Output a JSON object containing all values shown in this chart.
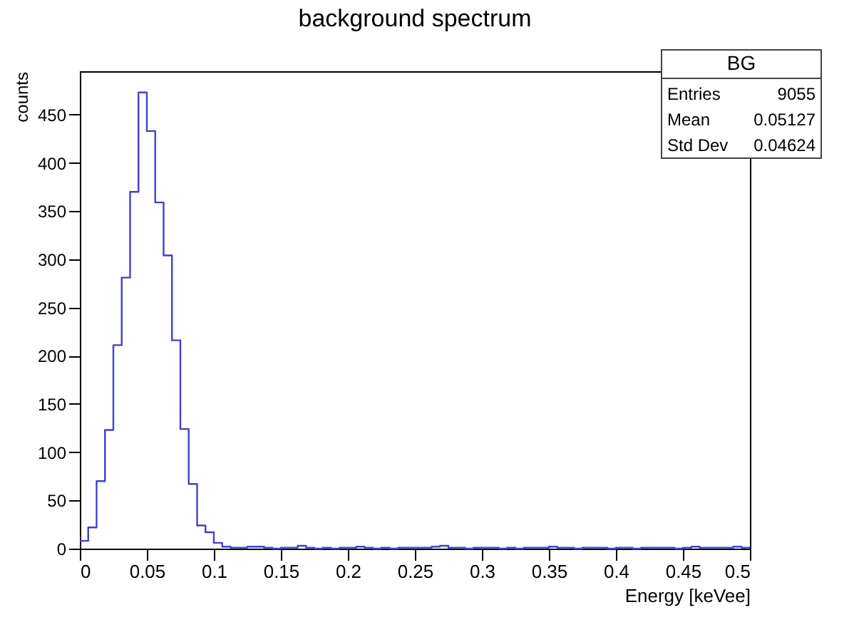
{
  "chart_data": {
    "type": "histogram",
    "title": "background spectrum",
    "xlabel": "Energy [keVee]",
    "ylabel": "counts",
    "bins": [
      0,
      0.00625,
      0.0125,
      0.01875,
      0.025,
      0.03125,
      0.0375,
      0.04375,
      0.05,
      0.05625,
      0.0625,
      0.06875,
      0.075,
      0.08125,
      0.0875,
      0.09375,
      0.1,
      0.10625,
      0.1125,
      0.11875,
      0.125,
      0.13125,
      0.1375,
      0.14375,
      0.15,
      0.15625,
      0.1625,
      0.16875,
      0.175,
      0.18125,
      0.1875,
      0.19375,
      0.2,
      0.20625,
      0.2125,
      0.21875,
      0.225,
      0.23125,
      0.2375,
      0.24375,
      0.25,
      0.25625,
      0.2625,
      0.26875,
      0.275,
      0.28125,
      0.2875,
      0.29375,
      0.3,
      0.30625,
      0.3125,
      0.31875,
      0.325,
      0.33125,
      0.3375,
      0.34375,
      0.35,
      0.35625,
      0.3625,
      0.36875,
      0.375,
      0.38125,
      0.3875,
      0.39375,
      0.4,
      0.40625,
      0.4125,
      0.41875,
      0.425,
      0.43125,
      0.4375,
      0.44375,
      0.45,
      0.45625,
      0.4625,
      0.46875,
      0.475,
      0.48125,
      0.4875,
      0.49375,
      0.5
    ],
    "values": [
      8,
      22,
      70,
      123,
      211,
      281,
      370,
      473,
      433,
      359,
      304,
      216,
      124,
      67,
      24,
      17,
      6,
      2,
      1,
      1,
      2,
      2,
      1,
      0,
      1,
      1,
      3,
      1,
      0,
      1,
      0,
      1,
      1,
      2,
      1,
      0,
      1,
      0,
      1,
      1,
      1,
      1,
      2,
      3,
      1,
      1,
      0,
      1,
      1,
      1,
      0,
      1,
      0,
      1,
      1,
      1,
      2,
      1,
      1,
      0,
      1,
      1,
      1,
      0,
      1,
      1,
      0,
      1,
      1,
      1,
      1,
      0,
      1,
      2,
      1,
      1,
      1,
      1,
      2,
      1
    ],
    "color": "#4040cc",
    "xlim": [
      0,
      0.5
    ],
    "xticks": [
      0,
      0.05,
      0.1,
      0.15,
      0.2,
      0.25,
      0.3,
      0.35,
      0.4,
      0.45,
      0.5
    ],
    "ylim": [
      0,
      495
    ],
    "yticks": [
      0,
      50,
      100,
      150,
      200,
      250,
      300,
      350,
      400,
      450
    ],
    "grid": false,
    "annotations": [
      "BG",
      "Entries 9055",
      "Mean 0.05127",
      "Std Dev 0.04624"
    ]
  }
}
